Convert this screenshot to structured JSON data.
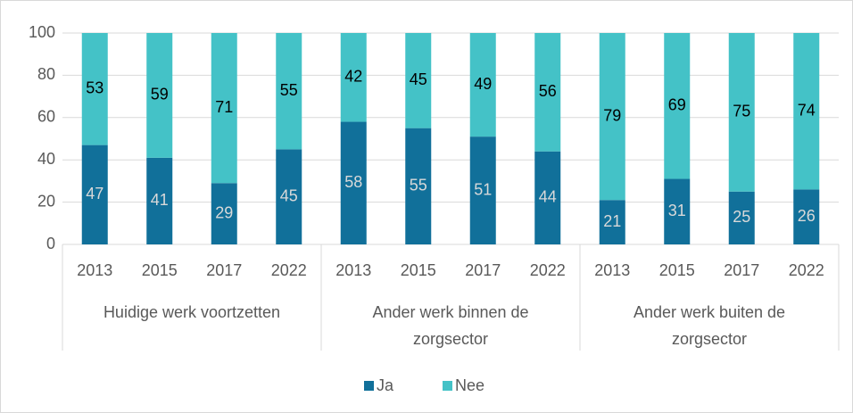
{
  "chart_data": {
    "type": "stacked-bar",
    "categories": [
      "2013",
      "2015",
      "2017",
      "2022",
      "2013",
      "2015",
      "2017",
      "2022",
      "2013",
      "2015",
      "2017",
      "2022"
    ],
    "groups": [
      "Huidige werk voortzetten",
      "Ander werk binnen de zorgsector",
      "Ander werk buiten de zorgsector"
    ],
    "series": [
      {
        "name": "Ja",
        "color": "#11709a",
        "label_color": "#d9d9d9",
        "values": [
          47,
          41,
          29,
          45,
          58,
          55,
          51,
          44,
          21,
          31,
          25,
          26
        ]
      },
      {
        "name": "Nee",
        "color": "#44c2c7",
        "label_color": "#000000",
        "values": [
          53,
          59,
          71,
          55,
          42,
          45,
          49,
          56,
          79,
          69,
          75,
          74
        ]
      }
    ],
    "ylim": [
      0,
      100
    ],
    "yticks": [
      0,
      20,
      40,
      60,
      80,
      100
    ],
    "grid": true,
    "legend": "bottom"
  }
}
